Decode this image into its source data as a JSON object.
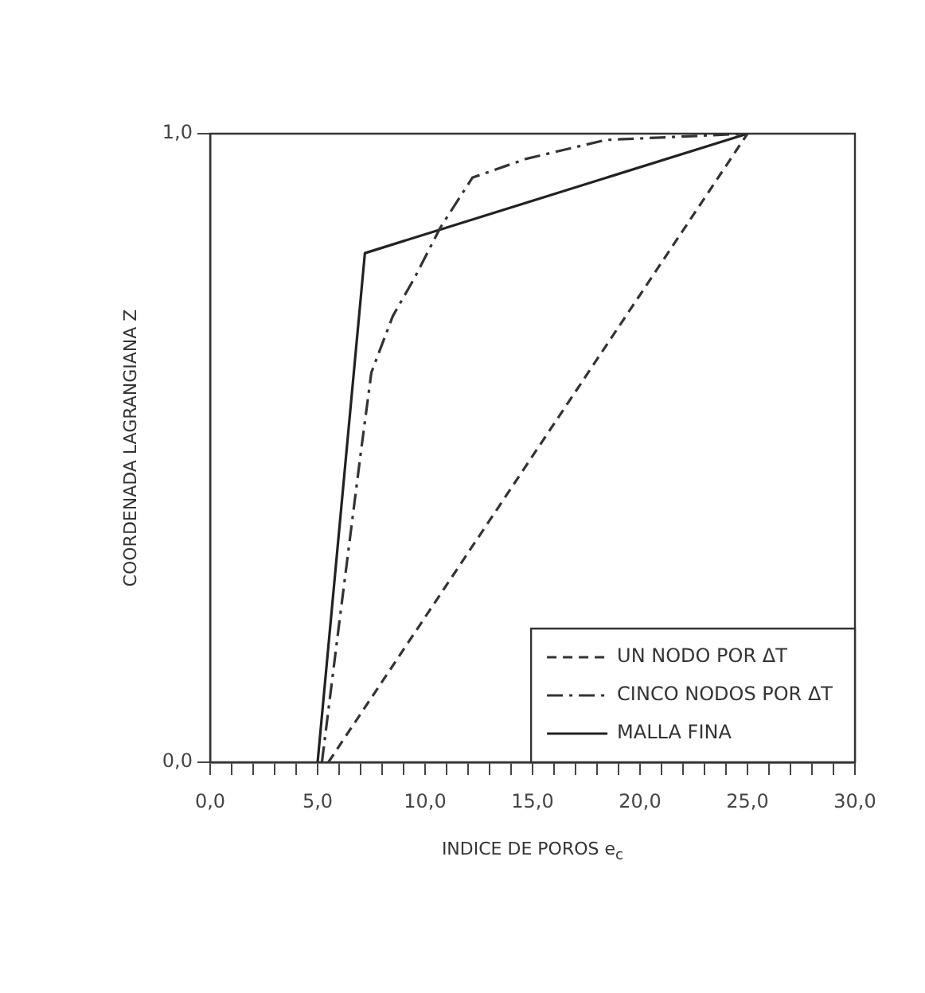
{
  "chart_data": {
    "type": "line",
    "xlabel": "INDICE DE POROS e$_{c}$",
    "ylabel": "COORDENADA LAGRANGIANA Z",
    "xlim": [
      0,
      30
    ],
    "ylim": [
      0,
      1
    ],
    "xticks": [
      {
        "value": 0,
        "label": "0,0"
      },
      {
        "value": 1,
        "label": null
      },
      {
        "value": 2,
        "label": null
      },
      {
        "value": 3,
        "label": null
      },
      {
        "value": 4,
        "label": null
      },
      {
        "value": 5,
        "label": "5,0"
      },
      {
        "value": 6,
        "label": null
      },
      {
        "value": 7,
        "label": null
      },
      {
        "value": 8,
        "label": null
      },
      {
        "value": 9,
        "label": null
      },
      {
        "value": 10,
        "label": "10,0"
      },
      {
        "value": 11,
        "label": null
      },
      {
        "value": 12,
        "label": null
      },
      {
        "value": 13,
        "label": null
      },
      {
        "value": 14,
        "label": null
      },
      {
        "value": 15,
        "label": "15,0"
      },
      {
        "value": 16,
        "label": null
      },
      {
        "value": 17,
        "label": null
      },
      {
        "value": 18,
        "label": null
      },
      {
        "value": 19,
        "label": null
      },
      {
        "value": 20,
        "label": "20,0"
      },
      {
        "value": 21,
        "label": null
      },
      {
        "value": 22,
        "label": null
      },
      {
        "value": 23,
        "label": null
      },
      {
        "value": 24,
        "label": null
      },
      {
        "value": 25,
        "label": "25,0"
      },
      {
        "value": 26,
        "label": null
      },
      {
        "value": 27,
        "label": null
      },
      {
        "value": 28,
        "label": null
      },
      {
        "value": 29,
        "label": null
      },
      {
        "value": 30,
        "label": "30,0"
      }
    ],
    "yticks": [
      {
        "value": 0,
        "label": "0,0"
      },
      {
        "value": 1,
        "label": "1,0"
      }
    ],
    "grid": false,
    "legend": "bottom right",
    "marker": "none",
    "series": [
      {
        "name": "UN NODO POR ΔT",
        "color": "#333333",
        "line_style": "dashed",
        "x": [
          5.5,
          25
        ],
        "values": [
          0,
          1
        ]
      },
      {
        "name": "CINCO NODOS POR ΔT",
        "color": "#333333",
        "line_style": "dashdot",
        "x": [
          5.2,
          6,
          7,
          7.5,
          8.5,
          9.5,
          10.7,
          12.2,
          14.7,
          18.4,
          25
        ],
        "values": [
          0,
          0.22,
          0.49,
          0.62,
          0.71,
          0.77,
          0.85,
          0.93,
          0.96,
          0.99,
          1
        ]
      },
      {
        "name": "MALLA FINA",
        "color": "#222222",
        "line_style": "solid",
        "x": [
          5,
          7.2,
          25
        ],
        "values": [
          0,
          0.81,
          1
        ]
      }
    ]
  }
}
